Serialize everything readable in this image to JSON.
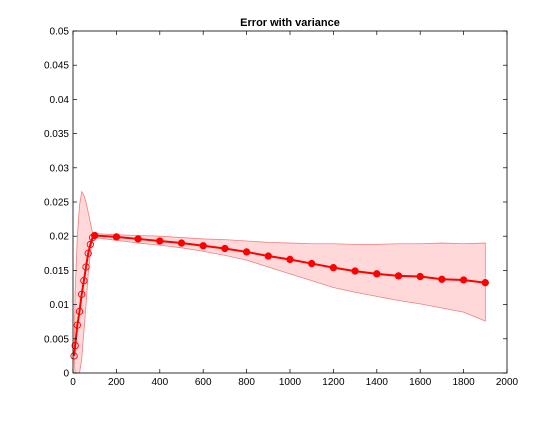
{
  "chart_data": {
    "type": "line",
    "title": "Error with variance",
    "xlabel": "",
    "ylabel": "",
    "xlim": [
      0,
      2000
    ],
    "ylim": [
      0,
      0.05
    ],
    "xticks": [
      0,
      200,
      400,
      600,
      800,
      1000,
      1200,
      1400,
      1600,
      1800,
      2000
    ],
    "xtick_labels": [
      "0",
      "200",
      "400",
      "600",
      "800",
      "1000",
      "1200",
      "1400",
      "1600",
      "1800",
      "2000"
    ],
    "yticks": [
      0,
      0.005,
      0.01,
      0.015,
      0.02,
      0.025,
      0.03,
      0.035,
      0.04,
      0.045,
      0.05
    ],
    "ytick_labels": [
      "0",
      "0.005",
      "0.01",
      "0.015",
      "0.02",
      "0.025",
      "0.03",
      "0.035",
      "0.04",
      "0.045",
      "0.05"
    ],
    "grid": false,
    "legend": "none",
    "series": [
      {
        "marker": "circle",
        "color": "#ff0000",
        "x": [
          5,
          10,
          20,
          30,
          40,
          50,
          60,
          70,
          80,
          90,
          100,
          200,
          300,
          400,
          500,
          600,
          700,
          800,
          900,
          1000,
          1100,
          1200,
          1300,
          1400,
          1500,
          1600,
          1700,
          1800,
          1900
        ],
        "y": [
          0.0025,
          0.004,
          0.007,
          0.009,
          0.0115,
          0.0135,
          0.0155,
          0.0175,
          0.0188,
          0.0198,
          0.0201,
          0.0199,
          0.0196,
          0.0193,
          0.019,
          0.0186,
          0.0182,
          0.0177,
          0.0171,
          0.0166,
          0.016,
          0.0154,
          0.0149,
          0.0145,
          0.0142,
          0.0141,
          0.0137,
          0.0136,
          0.0132
        ],
        "lower": [
          0.0022,
          0.0,
          0.0,
          0.0,
          0.002,
          0.006,
          0.01,
          0.0145,
          0.0175,
          0.0195,
          0.0198,
          0.0194,
          0.019,
          0.0187,
          0.0183,
          0.0178,
          0.0172,
          0.0165,
          0.0155,
          0.0145,
          0.0135,
          0.0125,
          0.0118,
          0.0112,
          0.0106,
          0.0101,
          0.0095,
          0.0089,
          0.0076
        ],
        "upper": [
          0.0028,
          0.012,
          0.02,
          0.0245,
          0.0265,
          0.026,
          0.025,
          0.0235,
          0.022,
          0.0205,
          0.0204,
          0.0202,
          0.0201,
          0.02,
          0.0198,
          0.0196,
          0.0195,
          0.0193,
          0.0191,
          0.019,
          0.0189,
          0.0189,
          0.0188,
          0.0188,
          0.0189,
          0.0189,
          0.019,
          0.0189,
          0.019
        ]
      }
    ]
  },
  "colors": {
    "band_fill": "#ffd9d9",
    "band_edge": "#f08080",
    "line": "#ff0000",
    "axes": "#000000"
  }
}
